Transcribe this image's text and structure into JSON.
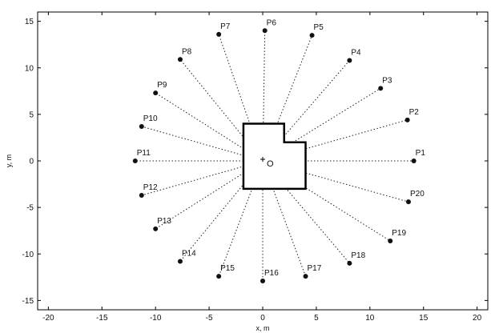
{
  "chart_data": {
    "type": "scatter",
    "title": "",
    "xlabel": "x, m",
    "ylabel": "y, m",
    "xlim": [
      -21,
      21
    ],
    "ylim": [
      -16,
      16
    ],
    "xticks": [
      -20,
      -15,
      -10,
      -5,
      0,
      5,
      10,
      15,
      20
    ],
    "yticks": [
      -15,
      -10,
      -5,
      0,
      5,
      10,
      15
    ],
    "grid": false,
    "origin": {
      "x": 0,
      "y": 0,
      "label": "O"
    },
    "building_outline": [
      [
        -1.8,
        4
      ],
      [
        2,
        4
      ],
      [
        2,
        2
      ],
      [
        4,
        2
      ],
      [
        4,
        -3
      ],
      [
        -1.8,
        -3
      ],
      [
        -1.8,
        4
      ]
    ],
    "points": [
      {
        "label": "P1",
        "x": 14.1,
        "y": 0
      },
      {
        "label": "P2",
        "x": 13.5,
        "y": 4.4
      },
      {
        "label": "P3",
        "x": 11.0,
        "y": 7.8
      },
      {
        "label": "P4",
        "x": 8.1,
        "y": 10.8
      },
      {
        "label": "P5",
        "x": 4.6,
        "y": 13.5
      },
      {
        "label": "P6",
        "x": 0.2,
        "y": 14.0
      },
      {
        "label": "P7",
        "x": -4.1,
        "y": 13.6
      },
      {
        "label": "P8",
        "x": -7.7,
        "y": 10.9
      },
      {
        "label": "P9",
        "x": -10.0,
        "y": 7.3
      },
      {
        "label": "P10",
        "x": -11.3,
        "y": 3.7
      },
      {
        "label": "P11",
        "x": -11.9,
        "y": 0
      },
      {
        "label": "P12",
        "x": -11.3,
        "y": -3.7
      },
      {
        "label": "P13",
        "x": -10.0,
        "y": -7.3
      },
      {
        "label": "P14",
        "x": -7.7,
        "y": -10.8
      },
      {
        "label": "P15",
        "x": -4.1,
        "y": -12.4
      },
      {
        "label": "P16",
        "x": 0.0,
        "y": -12.9
      },
      {
        "label": "P17",
        "x": 4.0,
        "y": -12.4
      },
      {
        "label": "P18",
        "x": 8.1,
        "y": -11.0
      },
      {
        "label": "P19",
        "x": 11.9,
        "y": -8.6
      },
      {
        "label": "P20",
        "x": 13.6,
        "y": -4.4
      }
    ]
  }
}
